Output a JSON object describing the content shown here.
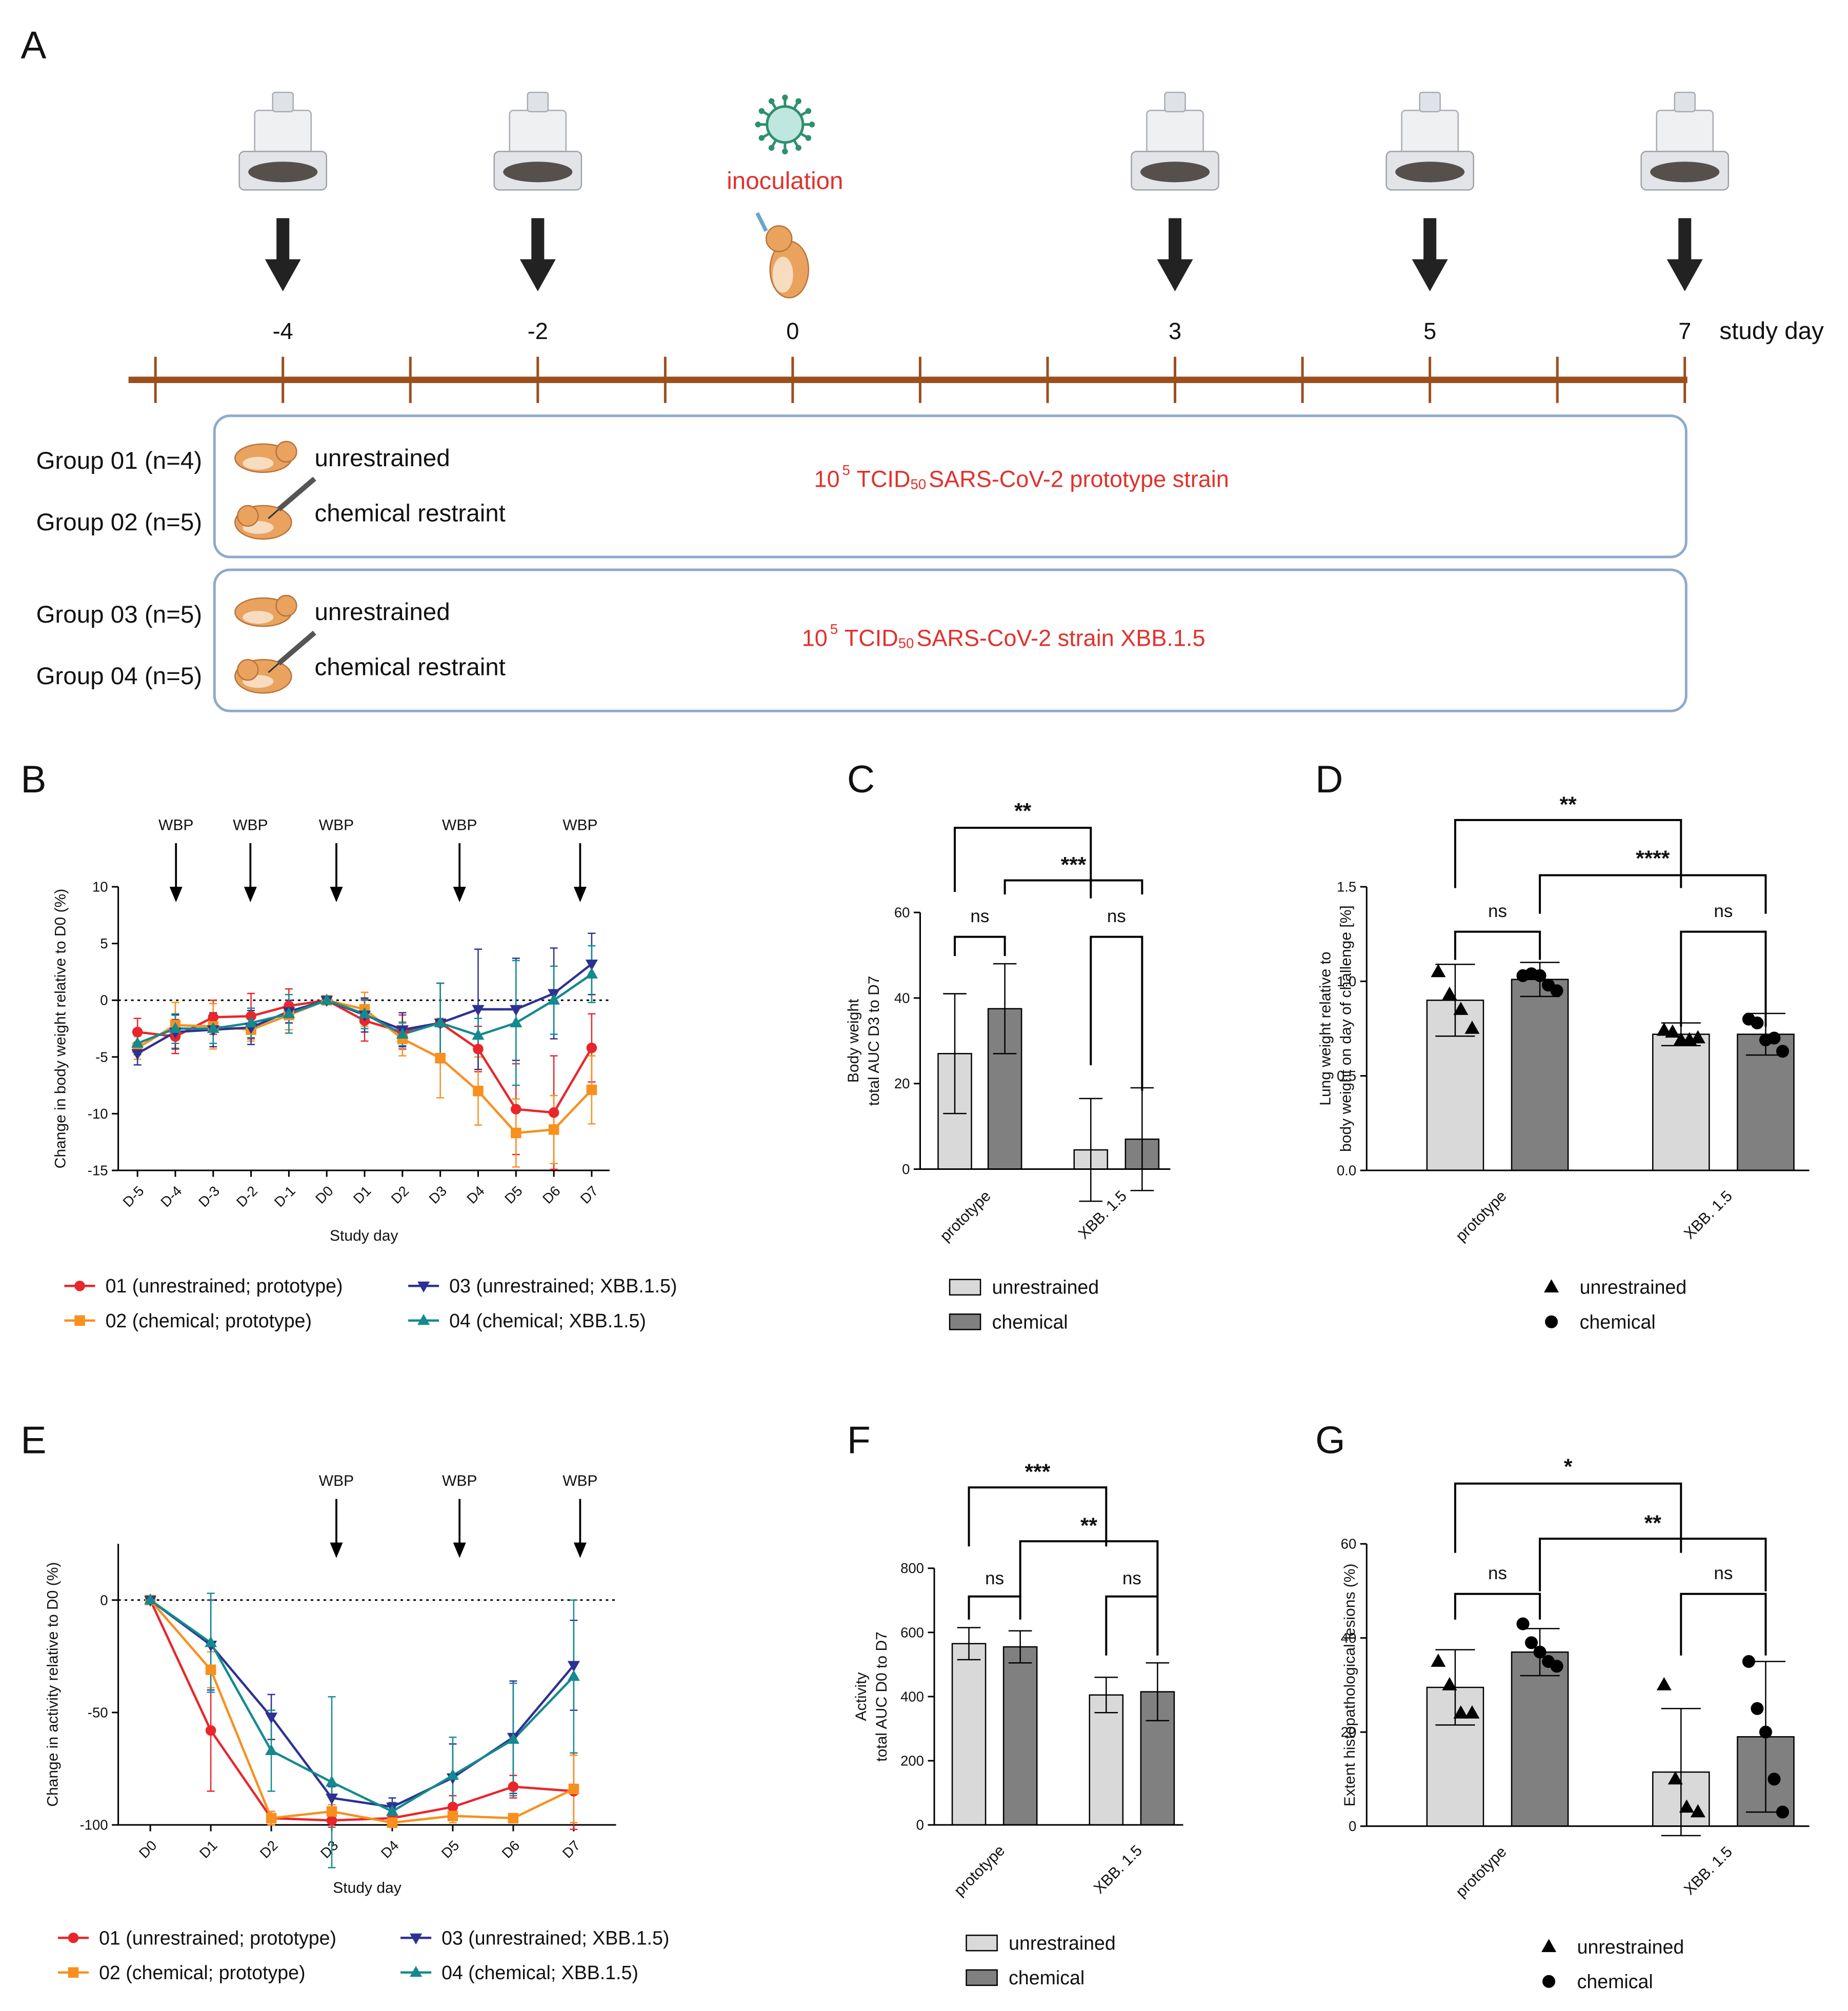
{
  "timeline": {
    "letter": "A",
    "xticks": [
      -5,
      -4,
      -3,
      -2,
      -1,
      0,
      1,
      2,
      3,
      4,
      5,
      6,
      7
    ],
    "days": [
      -4,
      -2,
      0,
      3,
      5,
      7
    ],
    "measurement_days": [
      -4,
      -2,
      3,
      5,
      7
    ],
    "inoculation_day": 0,
    "inoculation_label": "inoculation",
    "axis_label": "study day",
    "boxes": [
      {
        "groups": [
          {
            "label": "Group 01 (n=4)",
            "condition": "unrestrained"
          },
          {
            "label": "Group 02 (n=5)",
            "condition": "chemical restraint"
          }
        ],
        "inoculum": {
          "base": "10",
          "exponent": "5",
          "unit": "TCID",
          "unit_sub": "50",
          "strain": "SARS-CoV-2 prototype strain"
        }
      },
      {
        "groups": [
          {
            "label": "Group 03 (n=5)",
            "condition": "unrestrained"
          },
          {
            "label": "Group 04 (n=5)",
            "condition": "chemical restraint"
          }
        ],
        "inoculum": {
          "base": "10",
          "exponent": "5",
          "unit": "TCID",
          "unit_sub": "50",
          "strain": "SARS-CoV-2 strain XBB.1.5"
        }
      }
    ]
  },
  "chart_data": [
    {
      "type": "line",
      "letter": "B",
      "ylabel": "Change in body weight relative to D0 (%)",
      "xlabel": "Study day",
      "categories": [
        "D-5",
        "D-4",
        "D-3",
        "D-2",
        "D-1",
        "D0",
        "D1",
        "D2",
        "D3",
        "D4",
        "D5",
        "D6",
        "D7"
      ],
      "ylim": [
        -15,
        10
      ],
      "yticks": [
        -15,
        -10,
        -5,
        0,
        5,
        10
      ],
      "hline": 0,
      "annotations": [
        "WBP",
        "WBP",
        "WBP",
        "WBP",
        "WBP"
      ],
      "series": [
        {
          "name": "01 (unrestrained; prototype)",
          "color": "#e8262b",
          "marker": "circle",
          "values": [
            -2.8,
            -3.2,
            -1.5,
            -1.4,
            -0.5,
            0,
            -1.8,
            -2.8,
            -2,
            -4.3,
            -9.6,
            -9.9,
            -4.2
          ],
          "errors": [
            1.2,
            1.5,
            1.5,
            2,
            1.5,
            0,
            1.8,
            1.5,
            3.5,
            2,
            4,
            5,
            3
          ]
        },
        {
          "name": "02 (chemical; prototype)",
          "color": "#f7901e",
          "marker": "square",
          "values": [
            -4.2,
            -2.2,
            -2.3,
            -2.6,
            -1.3,
            0,
            -0.8,
            -3.4,
            -5.1,
            -8,
            -11.7,
            -11.4,
            -7.9
          ],
          "errors": [
            1,
            2,
            2,
            1,
            1.3,
            0,
            1.5,
            1.5,
            3.5,
            3,
            3,
            3,
            3
          ]
        },
        {
          "name": "03 (unrestrained; XBB.1.5)",
          "color": "#2e3192",
          "marker": "triangle-down",
          "values": [
            -4.7,
            -2.8,
            -2.6,
            -2.4,
            -1,
            0,
            -1.3,
            -2.6,
            -2,
            -0.8,
            -0.8,
            0.6,
            3.2
          ],
          "errors": [
            1,
            1.5,
            1.5,
            1.5,
            1,
            0,
            1.5,
            1.5,
            3.5,
            5.3,
            4.5,
            4,
            2.7
          ]
        },
        {
          "name": "04 (chemical; XBB.1.5)",
          "color": "#138a8f",
          "marker": "triangle",
          "values": [
            -3.8,
            -2.5,
            -2.5,
            -2,
            -1.2,
            0,
            -1.2,
            -3,
            -2,
            -3.1,
            -2,
            0,
            2.3
          ],
          "errors": [
            1,
            1.3,
            1.3,
            1.3,
            1.7,
            0,
            1.3,
            1,
            3.5,
            1.5,
            5.5,
            3,
            2.5
          ]
        }
      ]
    },
    {
      "type": "bar",
      "letter": "C",
      "ylabel": [
        "Body weight",
        "total AUC D3 to D7"
      ],
      "categories": [
        "prototype",
        "XBB. 1.5"
      ],
      "ylim": [
        0,
        60
      ],
      "yticks": [
        0,
        20,
        40,
        60
      ],
      "significance": [
        "**",
        "***",
        "ns",
        "ns"
      ],
      "series": [
        {
          "name": "unrestrained",
          "color": "#d9d9d9",
          "values": [
            27,
            4.5
          ],
          "errors": [
            14,
            12
          ]
        },
        {
          "name": "chemical",
          "color": "#808080",
          "values": [
            37.5,
            7
          ],
          "errors": [
            10.5,
            12
          ]
        }
      ]
    },
    {
      "type": "bar",
      "letter": "D",
      "ylabel": [
        "Lung weight relative to",
        "body weight on day of challenge [%]"
      ],
      "categories": [
        "prototype",
        "XBB. 1.5"
      ],
      "ylim": [
        0,
        1.5
      ],
      "yticks": [
        {
          "value": 0,
          "label": "0.0"
        },
        0.5,
        {
          "value": 1,
          "label": "1.0"
        },
        1.5
      ],
      "significance": [
        "**",
        "****",
        "ns",
        "ns"
      ],
      "series": [
        {
          "name": "unrestrained",
          "color": "#d9d9d9",
          "marker": "triangle",
          "marker_color": "#000000",
          "values": [
            0.9,
            0.72
          ],
          "errors": [
            0.19,
            0.06
          ],
          "points": [
            [
              1.05,
              0.93,
              0.85,
              0.75
            ],
            [
              0.74,
              0.73,
              0.69,
              0.69,
              0.7
            ]
          ]
        },
        {
          "name": "chemical",
          "color": "#808080",
          "marker": "circle",
          "marker_color": "#000000",
          "values": [
            1.01,
            0.72
          ],
          "errors": [
            0.09,
            0.11
          ],
          "points": [
            [
              1.03,
              1.04,
              1.03,
              0.98,
              0.95
            ],
            [
              0.8,
              0.78,
              0.69,
              0.7,
              0.63
            ]
          ]
        }
      ]
    },
    {
      "type": "line",
      "letter": "E",
      "ylabel": "Change in activity relative to  D0 (%)",
      "xlabel": "Study day",
      "categories": [
        "D0",
        "D1",
        "D2",
        "D3",
        "D4",
        "D5",
        "D6",
        "D7"
      ],
      "ylim": [
        -100,
        25
      ],
      "yticks": [
        -100,
        -50,
        0
      ],
      "hline": 0,
      "annotations": [
        "WBP",
        "WBP",
        "WBP"
      ],
      "series": [
        {
          "name": "01 (unrestrained; prototype)",
          "color": "#e8262b",
          "marker": "circle",
          "values": [
            0,
            -58,
            -97,
            -98,
            -97,
            -92,
            -83,
            -85
          ],
          "errors": [
            0,
            27,
            3,
            3,
            3,
            5,
            5,
            17
          ]
        },
        {
          "name": "02 (chemical; prototype)",
          "color": "#f7901e",
          "marker": "square",
          "values": [
            0,
            -31,
            -97,
            -94,
            -99,
            -96,
            -97,
            -84
          ],
          "errors": [
            0,
            8,
            3,
            3,
            2,
            3,
            2,
            15
          ]
        },
        {
          "name": "03 (unrestrained; XBB.1.5)",
          "color": "#2e3192",
          "marker": "triangle-down",
          "values": [
            0,
            -20,
            -52,
            -88,
            -92,
            -79,
            -61,
            -29
          ],
          "errors": [
            0,
            20,
            10,
            5,
            4,
            15,
            25,
            20
          ]
        },
        {
          "name": "04 (chemical; XBB.1.5)",
          "color": "#138a8f",
          "marker": "triangle",
          "values": [
            0,
            -19,
            -67,
            -81,
            -94,
            -78,
            -62,
            -34
          ],
          "errors": [
            0,
            22,
            18,
            38,
            4,
            17,
            25,
            34
          ]
        }
      ]
    },
    {
      "type": "bar",
      "letter": "F",
      "ylabel": [
        "Activity",
        "total AUC D0 to D7"
      ],
      "categories": [
        "prototype",
        "XBB. 1.5"
      ],
      "ylim": [
        0,
        800
      ],
      "yticks": [
        0,
        200,
        400,
        600,
        800
      ],
      "significance": [
        "***",
        "**",
        "ns",
        "ns"
      ],
      "series": [
        {
          "name": "unrestrained",
          "color": "#d9d9d9",
          "values": [
            565,
            405
          ],
          "errors": [
            50,
            55
          ]
        },
        {
          "name": "chemical",
          "color": "#808080",
          "values": [
            555,
            415
          ],
          "errors": [
            50,
            90
          ]
        }
      ]
    },
    {
      "type": "bar",
      "letter": "G",
      "ylabel": [
        "Extent histopathological lesions (%)"
      ],
      "categories": [
        "prototype",
        "XBB. 1.5"
      ],
      "ylim": [
        0,
        60
      ],
      "yticks": [
        0,
        20,
        40,
        60
      ],
      "significance": [
        "*",
        "**",
        "ns",
        "ns"
      ],
      "series": [
        {
          "name": "unrestrained",
          "color": "#d9d9d9",
          "marker": "triangle",
          "marker_color": "#000000",
          "values": [
            29.5,
            11.5
          ],
          "errors": [
            8,
            13.5
          ],
          "points": [
            [
              35,
              30,
              24,
              24
            ],
            [
              30,
              10,
              4,
              3
            ]
          ]
        },
        {
          "name": "chemical",
          "color": "#808080",
          "marker": "circle",
          "marker_color": "#000000",
          "values": [
            37,
            19
          ],
          "errors": [
            5,
            16
          ],
          "points": [
            [
              43,
              39,
              37,
              35,
              34
            ],
            [
              35,
              25,
              20,
              10,
              3
            ]
          ]
        }
      ]
    }
  ]
}
